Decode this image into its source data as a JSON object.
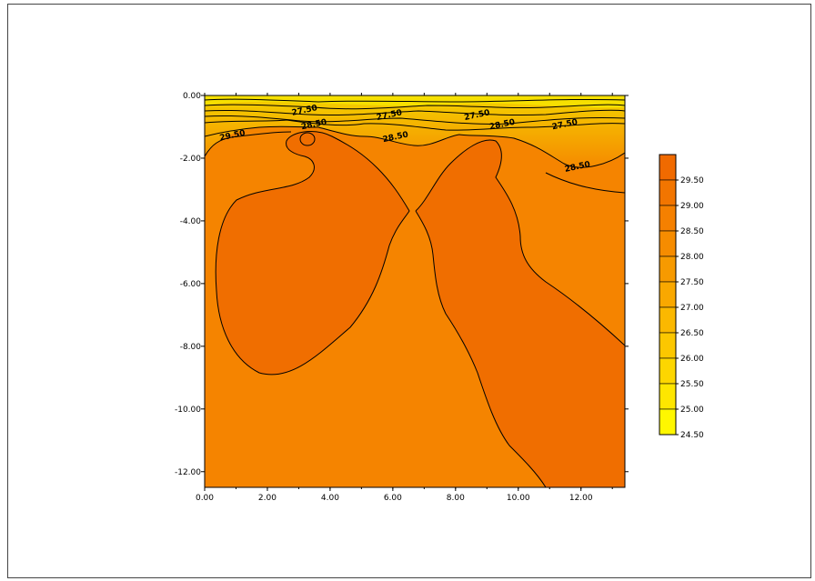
{
  "chart_data": {
    "type": "heatmap",
    "subtype": "filled-contour",
    "title": "",
    "xlabel": "",
    "ylabel": "",
    "xlim": [
      0,
      13.4
    ],
    "ylim": [
      -12.5,
      0
    ],
    "x_ticks": [
      "0.00",
      "2.00",
      "4.00",
      "6.00",
      "8.00",
      "10.00",
      "12.00"
    ],
    "x_tick_values": [
      0,
      2,
      4,
      6,
      8,
      10,
      12
    ],
    "y_ticks": [
      "0.00",
      "-2.00",
      "-4.00",
      "-6.00",
      "-8.00",
      "-10.00",
      "-12.00"
    ],
    "y_tick_values": [
      0,
      -2,
      -4,
      -6,
      -8,
      -10,
      -12
    ],
    "contour_labels": [
      {
        "text": "27.50",
        "x": 3.2,
        "y": -0.55
      },
      {
        "text": "28.50",
        "x": 3.5,
        "y": -1.0
      },
      {
        "text": "29.50",
        "x": 0.9,
        "y": -1.35
      },
      {
        "text": "27.50",
        "x": 5.9,
        "y": -0.7
      },
      {
        "text": "28.50",
        "x": 6.1,
        "y": -1.4
      },
      {
        "text": "27.50",
        "x": 8.7,
        "y": -0.7
      },
      {
        "text": "28.50",
        "x": 9.5,
        "y": -1.0
      },
      {
        "text": "27.50",
        "x": 11.5,
        "y": -1.0
      },
      {
        "text": "28.50",
        "x": 11.9,
        "y": -2.35
      }
    ],
    "colorbar": {
      "levels": [
        "29.50",
        "29.00",
        "28.50",
        "28.00",
        "27.50",
        "27.00",
        "26.50",
        "26.00",
        "25.50",
        "25.00",
        "24.50"
      ],
      "colors": [
        "#F06A00",
        "#F27500",
        "#F58000",
        "#F68C00",
        "#F79A00",
        "#F9A800",
        "#FBB800",
        "#FCC700",
        "#FDD600",
        "#FEE600",
        "#FFF700"
      ]
    },
    "region_colors": {
      "warm_core": "#F06A00",
      "mid": "#F58000",
      "surface": "#F2C000"
    }
  }
}
